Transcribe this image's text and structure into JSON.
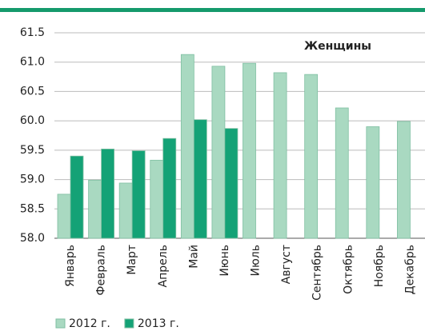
{
  "chart_data": {
    "type": "bar",
    "annotation": "Женщины",
    "categories": [
      "Январь",
      "Февраль",
      "Март",
      "Апрель",
      "Май",
      "Июнь",
      "Июль",
      "Август",
      "Сентябрь",
      "Октябрь",
      "Ноябрь",
      "Декабрь"
    ],
    "series": [
      {
        "name": "2012 г.",
        "color": "#a9d9c1",
        "values": [
          58.75,
          58.99,
          58.94,
          59.33,
          61.13,
          60.93,
          60.98,
          60.82,
          60.79,
          60.22,
          59.9,
          59.99
        ]
      },
      {
        "name": "2013 г.",
        "color": "#14a276",
        "values": [
          59.4,
          59.52,
          59.49,
          59.7,
          60.02,
          59.87,
          null,
          null,
          null,
          null,
          null,
          null
        ]
      }
    ],
    "ylim": [
      58,
      61.5
    ],
    "yticks": [
      {
        "value": 58,
        "label": "58.0"
      },
      58.5,
      {
        "value": 59,
        "label": "59.0"
      },
      59.5,
      {
        "value": 60,
        "label": "60.0"
      },
      60.5,
      {
        "value": 61,
        "label": "61.0"
      },
      61.5
    ],
    "grid": true
  }
}
